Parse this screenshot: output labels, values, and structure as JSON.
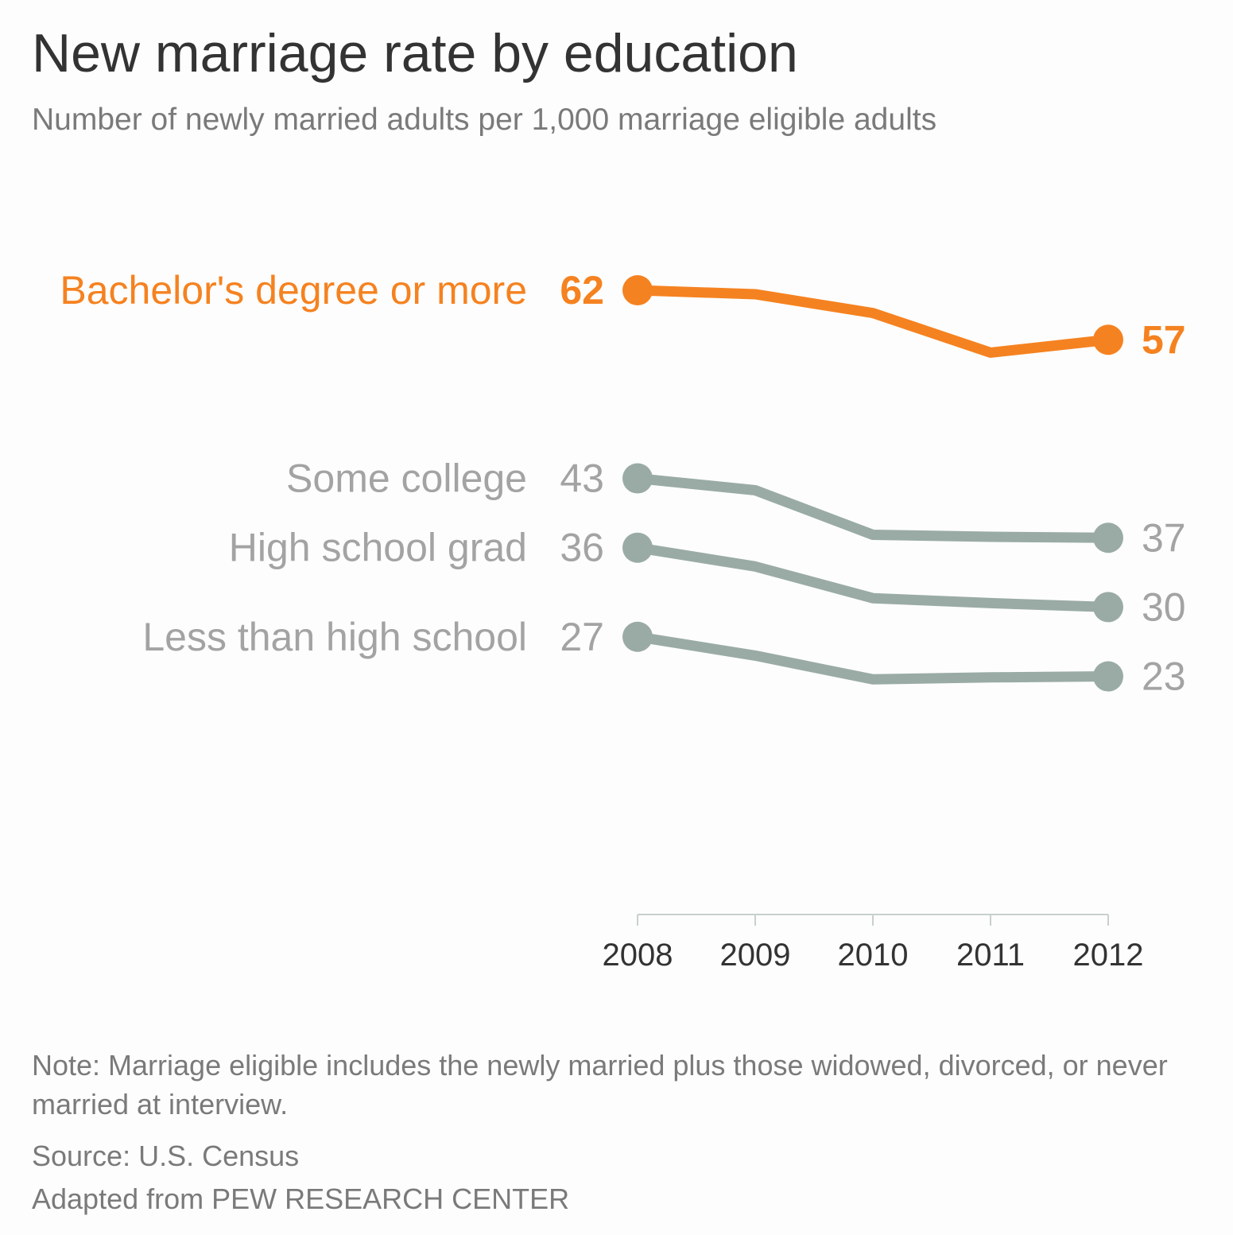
{
  "title": "New marriage rate by education",
  "subtitle": "Number of newly married adults per 1,000 marriage eligible adults",
  "note": "Note: Marriage eligible includes the newly married plus those widowed, divorced, or never married at interview.",
  "source": "Source: U.S. Census",
  "credit": "Adapted from PEW RESEARCH CENTER",
  "colors": {
    "highlight": "#f58220",
    "muted": "#9aaba6",
    "muted_text": "#a3a3a3",
    "axis": "#c8d0cd",
    "axis_text": "#333333"
  },
  "chart_data": {
    "type": "line",
    "x": [
      "2008",
      "2009",
      "2010",
      "2011",
      "2012"
    ],
    "grid": false,
    "legend": "direct labels at line ends",
    "series": [
      {
        "name": "Bachelor's degree or more",
        "values": [
          62,
          61.6,
          59.7,
          55.7,
          57
        ],
        "start_label": "62",
        "end_label": "57",
        "highlight": true
      },
      {
        "name": "Some college",
        "values": [
          43,
          41.8,
          37.3,
          37.1,
          37
        ],
        "start_label": "43",
        "end_label": "37",
        "highlight": false
      },
      {
        "name": "High school grad",
        "values": [
          36,
          34.1,
          30.9,
          30.4,
          30
        ],
        "start_label": "36",
        "end_label": "30",
        "highlight": false
      },
      {
        "name": "Less than high school",
        "values": [
          27,
          25.1,
          22.7,
          22.9,
          23
        ],
        "start_label": "27",
        "end_label": "23",
        "highlight": false
      }
    ]
  }
}
